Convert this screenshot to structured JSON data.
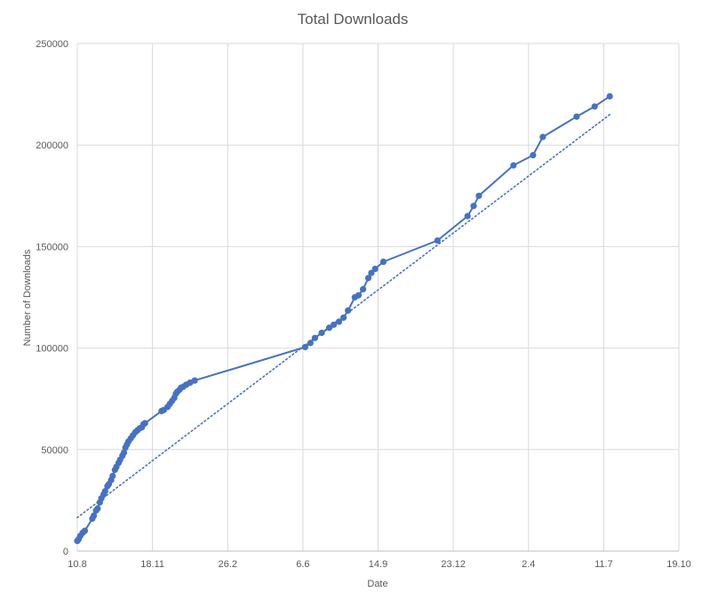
{
  "chart_data": {
    "type": "line",
    "title": "Total Downloads",
    "xlabel": "Date",
    "ylabel": "Number of Downloads",
    "x_axis_kind": "day_index",
    "x_ticks": [
      {
        "label": "10.8",
        "x": 0
      },
      {
        "label": "18.11",
        "x": 100
      },
      {
        "label": "26.2",
        "x": 200
      },
      {
        "label": "6.6",
        "x": 300
      },
      {
        "label": "14.9",
        "x": 400
      },
      {
        "label": "23.12",
        "x": 500
      },
      {
        "label": "2.4",
        "x": 600
      },
      {
        "label": "11.7",
        "x": 700
      },
      {
        "label": "19.10",
        "x": 800
      }
    ],
    "xlim": [
      0,
      800
    ],
    "ylim": [
      0,
      250000
    ],
    "y_ticks": [
      0,
      50000,
      100000,
      150000,
      200000,
      250000
    ],
    "grid": true,
    "legend": "none",
    "series": [
      {
        "line_color": "#4472c4",
        "marker": "circle",
        "points": [
          [
            0,
            5000
          ],
          [
            2,
            6000
          ],
          [
            4,
            7500
          ],
          [
            7,
            9000
          ],
          [
            10,
            10000
          ],
          [
            20,
            16000
          ],
          [
            22,
            17500
          ],
          [
            25,
            20000
          ],
          [
            27,
            21000
          ],
          [
            30,
            24000
          ],
          [
            32,
            26000
          ],
          [
            35,
            28000
          ],
          [
            37,
            29500
          ],
          [
            40,
            32000
          ],
          [
            42,
            33000
          ],
          [
            45,
            35000
          ],
          [
            47,
            37000
          ],
          [
            50,
            40000
          ],
          [
            52,
            41500
          ],
          [
            55,
            43500
          ],
          [
            57,
            45000
          ],
          [
            60,
            47000
          ],
          [
            62,
            48500
          ],
          [
            64,
            51000
          ],
          [
            66,
            52500
          ],
          [
            68,
            54000
          ],
          [
            71,
            55500
          ],
          [
            74,
            57000
          ],
          [
            77,
            58500
          ],
          [
            80,
            59500
          ],
          [
            83,
            60500
          ],
          [
            86,
            61000
          ],
          [
            88,
            62500
          ],
          [
            90,
            63000
          ],
          [
            112,
            69000
          ],
          [
            115,
            69500
          ],
          [
            120,
            71000
          ],
          [
            123,
            72500
          ],
          [
            126,
            74000
          ],
          [
            129,
            75500
          ],
          [
            131,
            77500
          ],
          [
            133,
            78500
          ],
          [
            136,
            79500
          ],
          [
            138,
            80500
          ],
          [
            141,
            81000
          ],
          [
            145,
            82000
          ],
          [
            150,
            83000
          ],
          [
            156,
            84000
          ],
          [
            303,
            100500
          ],
          [
            310,
            102500
          ],
          [
            316,
            105000
          ],
          [
            325,
            107500
          ],
          [
            335,
            110000
          ],
          [
            341,
            111500
          ],
          [
            348,
            113000
          ],
          [
            354,
            115000
          ],
          [
            360,
            118500
          ],
          [
            369,
            125000
          ],
          [
            374,
            126000
          ],
          [
            380,
            129000
          ],
          [
            387,
            134500
          ],
          [
            391,
            137000
          ],
          [
            396,
            139000
          ],
          [
            407,
            142500
          ],
          [
            479,
            153000
          ],
          [
            519,
            165000
          ],
          [
            527,
            170000
          ],
          [
            534,
            175000
          ],
          [
            580,
            190000
          ],
          [
            606,
            195000
          ],
          [
            619,
            204000
          ],
          [
            664,
            214000
          ],
          [
            688,
            219000
          ],
          [
            708,
            224000
          ]
        ]
      }
    ],
    "trendline": {
      "kind": "linear",
      "style": "dotted",
      "color": "#4472c4",
      "from": [
        0,
        16500
      ],
      "to": [
        708,
        215000
      ]
    }
  }
}
